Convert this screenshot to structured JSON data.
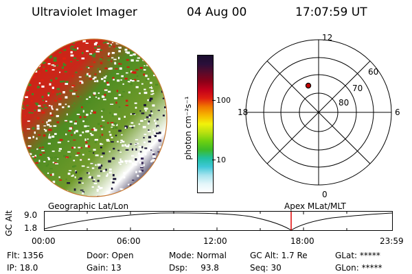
{
  "header": {
    "instrument": "Ultraviolet Imager",
    "date": "04 Aug 00",
    "time": "17:07:59  UT"
  },
  "colorbar": {
    "unit_label": "photon cm⁻²s⁻¹",
    "ticks": [
      "100",
      "10"
    ],
    "colors": [
      "#1a0d2e",
      "#2a0f3a",
      "#5a0a2a",
      "#8a0018",
      "#c2001a",
      "#e02010",
      "#f07a00",
      "#f6b800",
      "#f2f20a",
      "#b8e010",
      "#6ed010",
      "#3cbb28",
      "#20c0a0",
      "#40c8d8",
      "#a8e4ee",
      "#e4f6fa",
      "#ffffff"
    ]
  },
  "polar": {
    "labels": {
      "top": "12",
      "bottom": "0",
      "left": "18",
      "right": "6"
    },
    "lat_labels": [
      "60",
      "70",
      "80"
    ]
  },
  "timeline": {
    "left_label": "Geographic Lat/Lon",
    "right_label": "Apex MLat/MLT",
    "y_axis_label": "GC Alt",
    "y_ticks": [
      "9.0",
      "1.8"
    ],
    "x_ticks": [
      "00:00",
      "06:00",
      "12:00",
      "18:00",
      "23:59"
    ],
    "marker_color": "#e00000"
  },
  "status": {
    "flt": "Flt: 1356",
    "ip": "IP: 18.0",
    "door": "Door: Open",
    "gain": "Gain: 13",
    "mode": "Mode: Normal",
    "dsp": "Dsp:     93.8",
    "gc_alt": "GC Alt: 1.7 Re",
    "seq": "Seq: 30",
    "glat": "GLat: *****",
    "glon": "GLon: *****"
  }
}
